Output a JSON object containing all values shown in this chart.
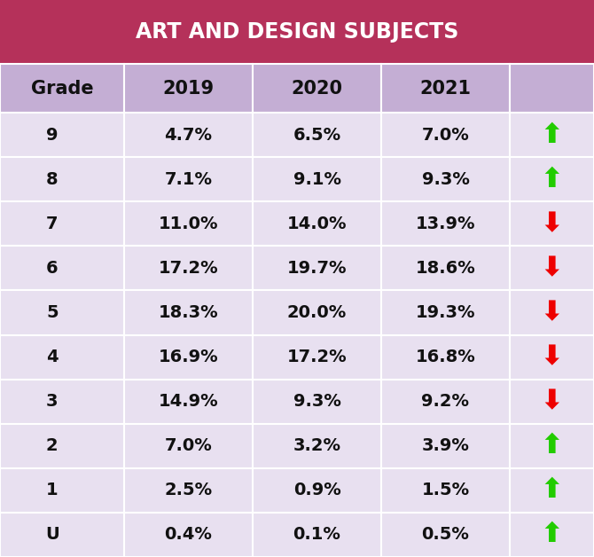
{
  "title": "ART AND DESIGN SUBJECTS",
  "title_bg": "#b5315a",
  "title_color": "#ffffff",
  "header_bg": "#c4aed4",
  "row_bg_light": "#e8e0f0",
  "row_bg_dark": "#ddd5ea",
  "outer_bg": "#ffffff",
  "col_headers": [
    "Grade",
    "2019",
    "2020",
    "2021"
  ],
  "rows": [
    {
      "grade": "9",
      "y2019": "4.7%",
      "y2020": "6.5%",
      "y2021": "7.0%",
      "arrow": "⬆",
      "arrow_color": "#22cc00"
    },
    {
      "grade": "8",
      "y2019": "7.1%",
      "y2020": "9.1%",
      "y2021": "9.3%",
      "arrow": "⬆",
      "arrow_color": "#22cc00"
    },
    {
      "grade": "7",
      "y2019": "11.0%",
      "y2020": "14.0%",
      "y2021": "13.9%",
      "arrow": "⬇",
      "arrow_color": "#ee0000"
    },
    {
      "grade": "6",
      "y2019": "17.2%",
      "y2020": "19.7%",
      "y2021": "18.6%",
      "arrow": "⬇",
      "arrow_color": "#ee0000"
    },
    {
      "grade": "5",
      "y2019": "18.3%",
      "y2020": "20.0%",
      "y2021": "19.3%",
      "arrow": "⬇",
      "arrow_color": "#ee0000"
    },
    {
      "grade": "4",
      "y2019": "16.9%",
      "y2020": "17.2%",
      "y2021": "16.8%",
      "arrow": "⬇",
      "arrow_color": "#ee0000"
    },
    {
      "grade": "3",
      "y2019": "14.9%",
      "y2020": "9.3%",
      "y2021": "9.2%",
      "arrow": "⬇",
      "arrow_color": "#ee0000"
    },
    {
      "grade": "2",
      "y2019": "7.0%",
      "y2020": "3.2%",
      "y2021": "3.9%",
      "arrow": "⬆",
      "arrow_color": "#22cc00"
    },
    {
      "grade": "1",
      "y2019": "2.5%",
      "y2020": "0.9%",
      "y2021": "1.5%",
      "arrow": "⬆",
      "arrow_color": "#22cc00"
    },
    {
      "grade": "U",
      "y2019": "0.4%",
      "y2020": "0.1%",
      "y2021": "0.5%",
      "arrow": "⬆",
      "arrow_color": "#22cc00"
    }
  ],
  "title_fontsize": 17,
  "header_fontsize": 15,
  "cell_fontsize": 14,
  "arrow_fontsize": 22,
  "figsize": [
    6.7,
    6.28
  ],
  "dpi": 100
}
